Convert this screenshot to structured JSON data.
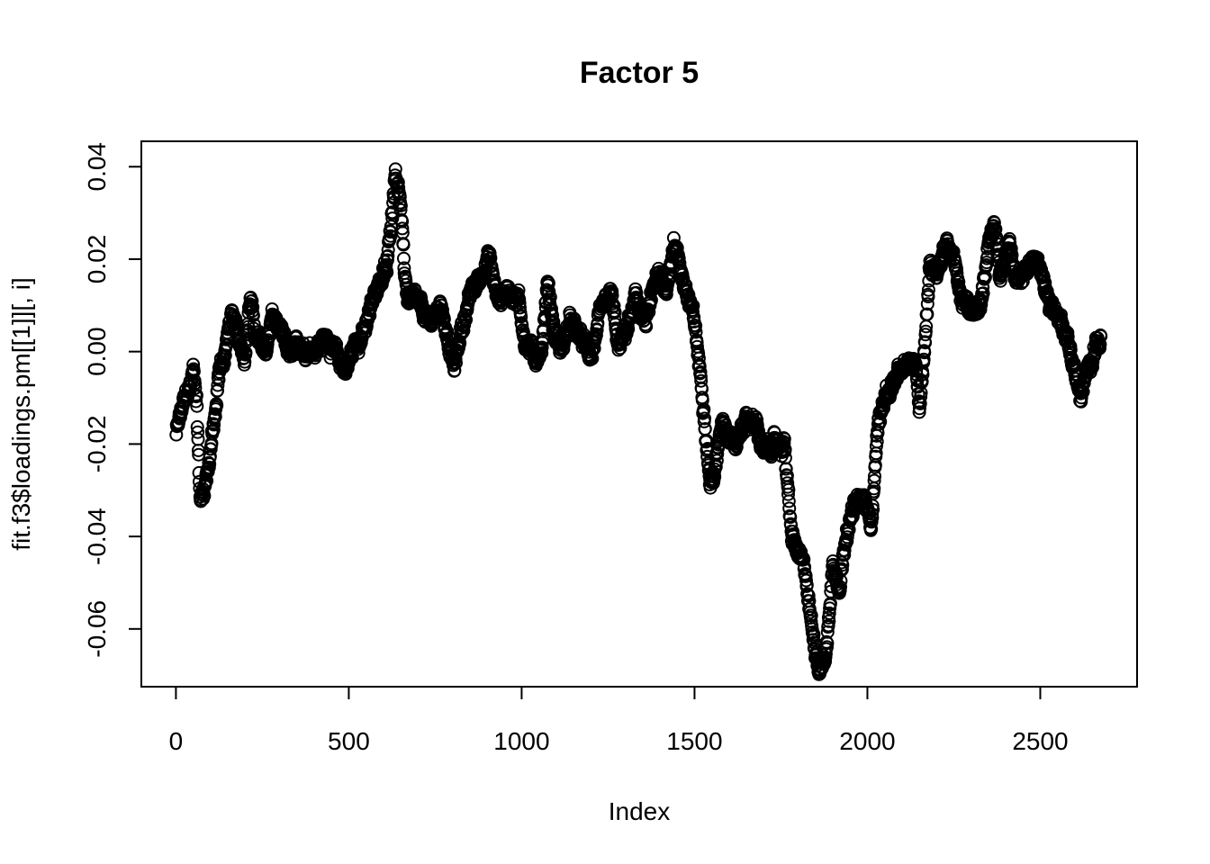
{
  "chart_data": {
    "type": "scatter",
    "title": "Factor 5",
    "xlabel": "Index",
    "ylabel": "fit.f3$loadings.pm[[1]][, i]",
    "xlim": [
      -100,
      2780
    ],
    "ylim": [
      -0.0725,
      0.0455
    ],
    "xticks": [
      0,
      500,
      1000,
      1500,
      2000,
      2500
    ],
    "xtick_labels": [
      "0",
      "500",
      "1000",
      "1500",
      "2000",
      "2500"
    ],
    "yticks": [
      -0.06,
      -0.04,
      -0.02,
      0.0,
      0.02,
      0.04
    ],
    "ytick_labels": [
      "-0.06",
      "-0.04",
      "-0.02",
      "0.00",
      "0.02",
      "0.04"
    ],
    "grid": false,
    "marker": "open-circle",
    "color": "#000000",
    "n_points": 2675,
    "profile": [
      [
        0,
        -0.018
      ],
      [
        20,
        -0.012
      ],
      [
        40,
        -0.008
      ],
      [
        50,
        -0.004
      ],
      [
        60,
        -0.01
      ],
      [
        70,
        -0.032
      ],
      [
        80,
        -0.03
      ],
      [
        95,
        -0.024
      ],
      [
        105,
        -0.018
      ],
      [
        115,
        -0.014
      ],
      [
        125,
        -0.004
      ],
      [
        140,
        -0.001
      ],
      [
        160,
        0.008
      ],
      [
        175,
        0.004
      ],
      [
        200,
        0.0
      ],
      [
        215,
        0.012
      ],
      [
        230,
        0.003
      ],
      [
        260,
        0.0
      ],
      [
        280,
        0.008
      ],
      [
        300,
        0.004
      ],
      [
        330,
        -0.001
      ],
      [
        360,
        0.001
      ],
      [
        400,
        0.001
      ],
      [
        440,
        0.003
      ],
      [
        470,
        -0.002
      ],
      [
        490,
        -0.004
      ],
      [
        520,
        0.002
      ],
      [
        550,
        0.005
      ],
      [
        580,
        0.014
      ],
      [
        610,
        0.018
      ],
      [
        625,
        0.03
      ],
      [
        635,
        0.04
      ],
      [
        650,
        0.032
      ],
      [
        660,
        0.018
      ],
      [
        670,
        0.012
      ],
      [
        700,
        0.01
      ],
      [
        730,
        0.006
      ],
      [
        770,
        0.01
      ],
      [
        790,
        0.001
      ],
      [
        805,
        -0.004
      ],
      [
        820,
        0.003
      ],
      [
        850,
        0.012
      ],
      [
        880,
        0.016
      ],
      [
        905,
        0.021
      ],
      [
        930,
        0.011
      ],
      [
        960,
        0.013
      ],
      [
        990,
        0.012
      ],
      [
        1010,
        0.002
      ],
      [
        1040,
        -0.001
      ],
      [
        1060,
        0.001
      ],
      [
        1075,
        0.016
      ],
      [
        1090,
        0.006
      ],
      [
        1110,
        0.0
      ],
      [
        1140,
        0.006
      ],
      [
        1170,
        0.003
      ],
      [
        1200,
        -0.001
      ],
      [
        1230,
        0.008
      ],
      [
        1260,
        0.012
      ],
      [
        1280,
        0.0
      ],
      [
        1300,
        0.004
      ],
      [
        1330,
        0.011
      ],
      [
        1360,
        0.006
      ],
      [
        1390,
        0.016
      ],
      [
        1420,
        0.014
      ],
      [
        1440,
        0.024
      ],
      [
        1460,
        0.018
      ],
      [
        1480,
        0.012
      ],
      [
        1500,
        0.006
      ],
      [
        1515,
        -0.004
      ],
      [
        1530,
        -0.014
      ],
      [
        1545,
        -0.028
      ],
      [
        1560,
        -0.026
      ],
      [
        1580,
        -0.014
      ],
      [
        1620,
        -0.02
      ],
      [
        1650,
        -0.014
      ],
      [
        1680,
        -0.016
      ],
      [
        1700,
        -0.022
      ],
      [
        1730,
        -0.02
      ],
      [
        1760,
        -0.02
      ],
      [
        1780,
        -0.04
      ],
      [
        1800,
        -0.044
      ],
      [
        1820,
        -0.048
      ],
      [
        1840,
        -0.06
      ],
      [
        1860,
        -0.068
      ],
      [
        1880,
        -0.066
      ],
      [
        1890,
        -0.056
      ],
      [
        1900,
        -0.046
      ],
      [
        1920,
        -0.05
      ],
      [
        1940,
        -0.038
      ],
      [
        1960,
        -0.034
      ],
      [
        1990,
        -0.032
      ],
      [
        2010,
        -0.038
      ],
      [
        2030,
        -0.016
      ],
      [
        2050,
        -0.01
      ],
      [
        2080,
        -0.006
      ],
      [
        2110,
        -0.004
      ],
      [
        2140,
        -0.002
      ],
      [
        2150,
        -0.012
      ],
      [
        2170,
        0.006
      ],
      [
        2180,
        0.018
      ],
      [
        2200,
        0.018
      ],
      [
        2230,
        0.024
      ],
      [
        2250,
        0.02
      ],
      [
        2270,
        0.012
      ],
      [
        2300,
        0.008
      ],
      [
        2330,
        0.01
      ],
      [
        2350,
        0.024
      ],
      [
        2370,
        0.028
      ],
      [
        2385,
        0.016
      ],
      [
        2410,
        0.024
      ],
      [
        2430,
        0.014
      ],
      [
        2460,
        0.018
      ],
      [
        2490,
        0.02
      ],
      [
        2520,
        0.012
      ],
      [
        2550,
        0.008
      ],
      [
        2575,
        0.004
      ],
      [
        2600,
        -0.004
      ],
      [
        2615,
        -0.01
      ],
      [
        2640,
        -0.004
      ],
      [
        2660,
        0.002
      ],
      [
        2675,
        0.002
      ]
    ]
  }
}
